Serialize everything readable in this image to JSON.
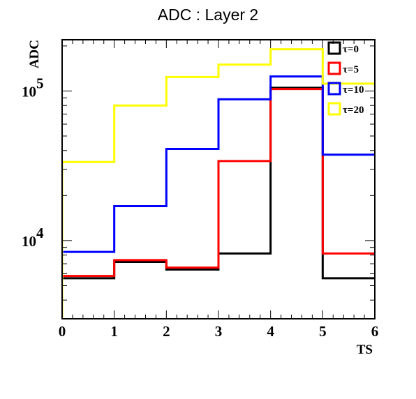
{
  "chart_data": {
    "type": "line",
    "step": true,
    "title": "ADC : Layer 2",
    "xlabel": "TS",
    "ylabel": "ADC",
    "xlim": [
      0,
      6
    ],
    "ylim": [
      3000,
      220000
    ],
    "yscale": "log",
    "x_edges": [
      0,
      1,
      2,
      3,
      4,
      5,
      6
    ],
    "x_ticks": [
      "0",
      "1",
      "2",
      "3",
      "4",
      "5",
      "6"
    ],
    "y_ticks": [
      {
        "value": 10000,
        "base": "10",
        "exp": "4"
      },
      {
        "value": 100000,
        "base": "10",
        "exp": "5"
      }
    ],
    "grid": false,
    "legend_position": "top-right",
    "series": [
      {
        "name": "τ=0",
        "color": "#000000",
        "values": [
          5600,
          7200,
          6400,
          8200,
          105000,
          5600
        ]
      },
      {
        "name": "τ=5",
        "color": "#ff0000",
        "values": [
          5800,
          7400,
          6600,
          34000,
          103000,
          8200
        ]
      },
      {
        "name": "τ=10",
        "color": "#0000ff",
        "values": [
          8400,
          17000,
          41000,
          88000,
          125000,
          37500
        ]
      },
      {
        "name": "τ=20",
        "color": "#ffff00",
        "values": [
          33500,
          80000,
          124000,
          150000,
          190000,
          112000
        ]
      }
    ]
  }
}
